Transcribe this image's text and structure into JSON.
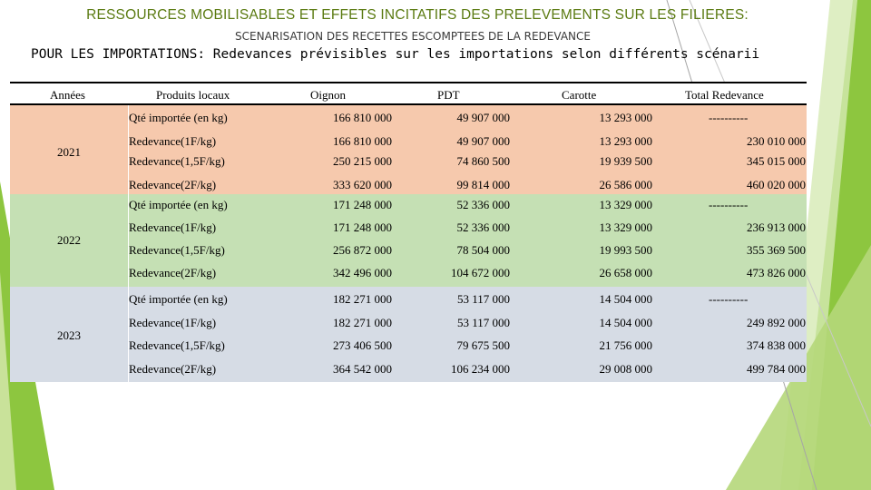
{
  "title": "RESSOURCES MOBILISABLES ET EFFETS INCITATIFS DES PRELEVEMENTS SUR LES FILIERES:",
  "subtitle": "SCENARISATION DES RECETTES ESCOMPTEES DE LA REDEVANCE",
  "heading": "POUR LES IMPORTATIONS: Redevances prévisibles sur les importations selon différents scénarii",
  "colors": {
    "accent_green": "#8dc63f",
    "year_2021_bg": "#f6c9ad",
    "year_2022_bg": "#c5e0b4",
    "year_2023_bg": "#d6dce5"
  },
  "table": {
    "headers": [
      "Années",
      "Produits locaux",
      "Oignon",
      "PDT",
      "Carotte",
      "Total Redevance"
    ],
    "groups": [
      {
        "year": "2021",
        "rows": [
          [
            "Qté importée (en kg)",
            "166 810 000",
            "49 907 000",
            "13 293 000",
            "----------"
          ],
          [
            "Redevance(1F/kg)",
            "166 810 000",
            "49 907 000",
            "13 293 000",
            "230 010 000"
          ],
          [
            "Redevance(1,5F/kg)",
            "250 215 000",
            "74 860 500",
            "19 939 500",
            "345 015 000"
          ],
          [
            "Redevance(2F/kg)",
            "333 620 000",
            "99 814 000",
            "26 586 000",
            "460 020 000"
          ]
        ]
      },
      {
        "year": "2022",
        "rows": [
          [
            "Qté importée (en kg)",
            "171 248 000",
            "52 336 000",
            "13 329 000",
            "----------"
          ],
          [
            "Redevance(1F/kg)",
            "171 248 000",
            "52 336 000",
            "13 329 000",
            "236 913 000"
          ],
          [
            "Redevance(1,5F/kg)",
            "256 872 000",
            "78 504 000",
            "19 993 500",
            "355 369 500"
          ],
          [
            "Redevance(2F/kg)",
            "342 496 000",
            "104 672 000",
            "26 658 000",
            "473 826 000"
          ]
        ]
      },
      {
        "year": "2023",
        "rows": [
          [
            "Qté importée (en kg)",
            "182 271 000",
            "53 117 000",
            "14 504 000",
            "----------"
          ],
          [
            "Redevance(1F/kg)",
            "182 271 000",
            "53 117 000",
            "14 504 000",
            "249 892 000"
          ],
          [
            "Redevance(1,5F/kg)",
            "273 406 500",
            "79 675 500",
            "21 756 000",
            "374 838 000"
          ],
          [
            "Redevance(2F/kg)",
            "364 542 000",
            "106 234 000",
            "29 008 000",
            "499 784 000"
          ]
        ]
      }
    ]
  }
}
